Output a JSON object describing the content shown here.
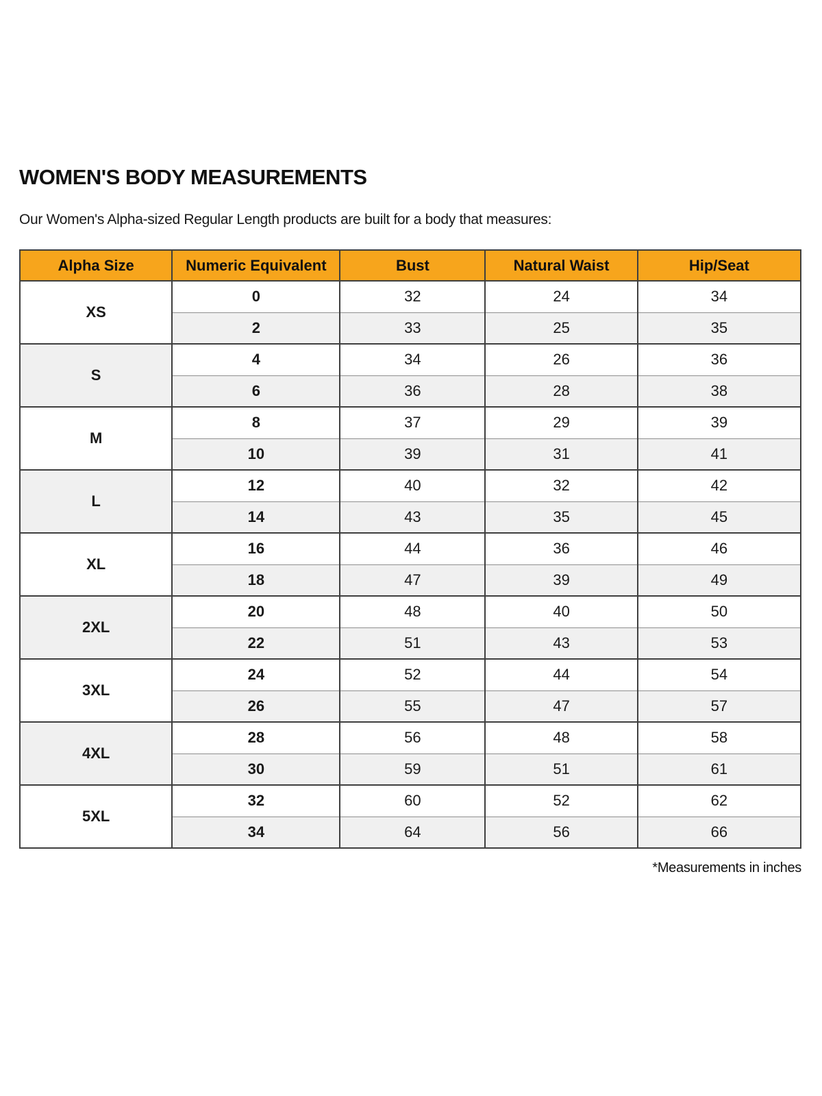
{
  "page": {
    "title": "WOMEN'S BODY MEASUREMENTS",
    "subtitle": "Our Women's Alpha-sized Regular Length products are built for a body that measures:",
    "footnote": "*Measurements in inches"
  },
  "colors": {
    "header_bg": "#F7A51C",
    "shaded_row_bg": "#F0F0F0",
    "border_dark": "#3F3F3F",
    "border_light": "#8F8F8F",
    "text": "#111111"
  },
  "table": {
    "headers": [
      "Alpha Size",
      "Numeric Equivalent",
      "Bust",
      "Natural Waist",
      "Hip/Seat"
    ],
    "column_widths_pct": [
      19.5,
      21.5,
      18.6,
      19.5,
      20.9
    ],
    "units": "inches",
    "groups": [
      {
        "alpha": "XS",
        "shaded": false,
        "rows": [
          {
            "numeric": "0",
            "bust": "32",
            "waist": "24",
            "hip": "34"
          },
          {
            "numeric": "2",
            "bust": "33",
            "waist": "25",
            "hip": "35"
          }
        ]
      },
      {
        "alpha": "S",
        "shaded": true,
        "rows": [
          {
            "numeric": "4",
            "bust": "34",
            "waist": "26",
            "hip": "36"
          },
          {
            "numeric": "6",
            "bust": "36",
            "waist": "28",
            "hip": "38"
          }
        ]
      },
      {
        "alpha": "M",
        "shaded": false,
        "rows": [
          {
            "numeric": "8",
            "bust": "37",
            "waist": "29",
            "hip": "39"
          },
          {
            "numeric": "10",
            "bust": "39",
            "waist": "31",
            "hip": "41"
          }
        ]
      },
      {
        "alpha": "L",
        "shaded": true,
        "rows": [
          {
            "numeric": "12",
            "bust": "40",
            "waist": "32",
            "hip": "42"
          },
          {
            "numeric": "14",
            "bust": "43",
            "waist": "35",
            "hip": "45"
          }
        ]
      },
      {
        "alpha": "XL",
        "shaded": false,
        "rows": [
          {
            "numeric": "16",
            "bust": "44",
            "waist": "36",
            "hip": "46"
          },
          {
            "numeric": "18",
            "bust": "47",
            "waist": "39",
            "hip": "49"
          }
        ]
      },
      {
        "alpha": "2XL",
        "shaded": true,
        "rows": [
          {
            "numeric": "20",
            "bust": "48",
            "waist": "40",
            "hip": "50"
          },
          {
            "numeric": "22",
            "bust": "51",
            "waist": "43",
            "hip": "53"
          }
        ]
      },
      {
        "alpha": "3XL",
        "shaded": false,
        "rows": [
          {
            "numeric": "24",
            "bust": "52",
            "waist": "44",
            "hip": "54"
          },
          {
            "numeric": "26",
            "bust": "55",
            "waist": "47",
            "hip": "57"
          }
        ]
      },
      {
        "alpha": "4XL",
        "shaded": true,
        "rows": [
          {
            "numeric": "28",
            "bust": "56",
            "waist": "48",
            "hip": "58"
          },
          {
            "numeric": "30",
            "bust": "59",
            "waist": "51",
            "hip": "61"
          }
        ]
      },
      {
        "alpha": "5XL",
        "shaded": false,
        "rows": [
          {
            "numeric": "32",
            "bust": "60",
            "waist": "52",
            "hip": "62"
          },
          {
            "numeric": "34",
            "bust": "64",
            "waist": "56",
            "hip": "66"
          }
        ]
      }
    ]
  }
}
